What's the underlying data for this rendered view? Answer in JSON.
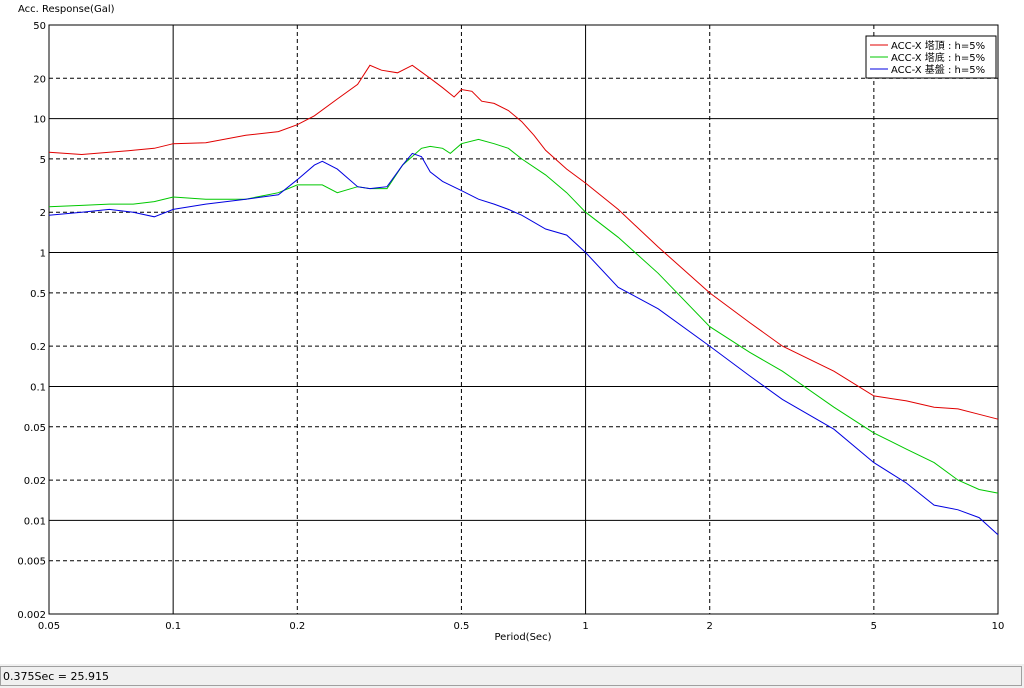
{
  "chart_data": {
    "type": "line",
    "y_label": "Acc. Response(Gal)",
    "x_label": "Period(Sec)",
    "x_log": true,
    "y_log": true,
    "grid": true,
    "legend": "top-right",
    "xlim": [
      0.05,
      10
    ],
    "ylim": [
      0.002,
      50
    ],
    "xticks": [
      0.05,
      0.1,
      0.2,
      0.5,
      1,
      2,
      5,
      10
    ],
    "yticks": [
      0.002,
      0.005,
      0.01,
      0.02,
      0.05,
      0.1,
      0.2,
      0.5,
      1,
      2,
      5,
      10,
      20,
      50
    ],
    "series": [
      {
        "name": "ACC-X 塔頂 : h=5%",
        "color": "#e00000",
        "x": [
          0.05,
          0.06,
          0.07,
          0.08,
          0.09,
          0.1,
          0.12,
          0.15,
          0.18,
          0.2,
          0.22,
          0.25,
          0.28,
          0.3,
          0.32,
          0.35,
          0.38,
          0.42,
          0.45,
          0.48,
          0.5,
          0.53,
          0.56,
          0.6,
          0.65,
          0.7,
          0.75,
          0.8,
          0.9,
          1,
          1.2,
          1.5,
          2,
          2.5,
          3,
          4,
          5,
          6,
          7,
          8,
          9,
          10
        ],
        "values": [
          5.6,
          5.4,
          5.6,
          5.8,
          6.0,
          6.5,
          6.6,
          7.5,
          8.0,
          9.0,
          10.5,
          14,
          18,
          25,
          23,
          22,
          25,
          20,
          17,
          14.5,
          16.5,
          16,
          13.5,
          13,
          11.5,
          9.5,
          7.5,
          5.8,
          4.2,
          3.3,
          2.1,
          1.1,
          0.5,
          0.3,
          0.2,
          0.13,
          0.085,
          0.078,
          0.07,
          0.068,
          0.062,
          0.057
        ]
      },
      {
        "name": "ACC-X 塔底 : h=5%",
        "color": "#00c800",
        "x": [
          0.05,
          0.06,
          0.07,
          0.08,
          0.09,
          0.1,
          0.12,
          0.15,
          0.18,
          0.2,
          0.23,
          0.25,
          0.28,
          0.3,
          0.33,
          0.36,
          0.4,
          0.42,
          0.45,
          0.47,
          0.5,
          0.55,
          0.6,
          0.65,
          0.7,
          0.8,
          0.9,
          1,
          1.2,
          1.5,
          2,
          2.5,
          3,
          4,
          5,
          6,
          7,
          8,
          9,
          10
        ],
        "values": [
          2.2,
          2.25,
          2.3,
          2.3,
          2.4,
          2.6,
          2.5,
          2.5,
          2.8,
          3.2,
          3.2,
          2.8,
          3.1,
          3.0,
          3.0,
          4.5,
          6.0,
          6.2,
          6.0,
          5.5,
          6.5,
          7.0,
          6.5,
          6.0,
          5.0,
          3.8,
          2.8,
          2.0,
          1.3,
          0.7,
          0.28,
          0.18,
          0.13,
          0.07,
          0.045,
          0.034,
          0.027,
          0.02,
          0.017,
          0.016
        ]
      },
      {
        "name": "ACC-X 基盤 : h=5%",
        "color": "#0000e0",
        "x": [
          0.05,
          0.06,
          0.07,
          0.08,
          0.09,
          0.1,
          0.12,
          0.15,
          0.18,
          0.2,
          0.22,
          0.23,
          0.25,
          0.28,
          0.3,
          0.33,
          0.36,
          0.38,
          0.4,
          0.42,
          0.45,
          0.5,
          0.55,
          0.6,
          0.65,
          0.7,
          0.8,
          0.9,
          1,
          1.2,
          1.5,
          2,
          2.5,
          3,
          4,
          5,
          6,
          7,
          8,
          9,
          10
        ],
        "values": [
          1.9,
          2.0,
          2.1,
          2.0,
          1.85,
          2.1,
          2.3,
          2.5,
          2.7,
          3.5,
          4.5,
          4.8,
          4.2,
          3.1,
          3.0,
          3.1,
          4.5,
          5.5,
          5.2,
          4.0,
          3.4,
          2.9,
          2.5,
          2.3,
          2.1,
          1.9,
          1.5,
          1.35,
          1.0,
          0.55,
          0.38,
          0.2,
          0.12,
          0.08,
          0.048,
          0.027,
          0.019,
          0.013,
          0.012,
          0.0105,
          0.0078
        ]
      }
    ]
  },
  "status_bar": "0.375Sec = 25.915"
}
